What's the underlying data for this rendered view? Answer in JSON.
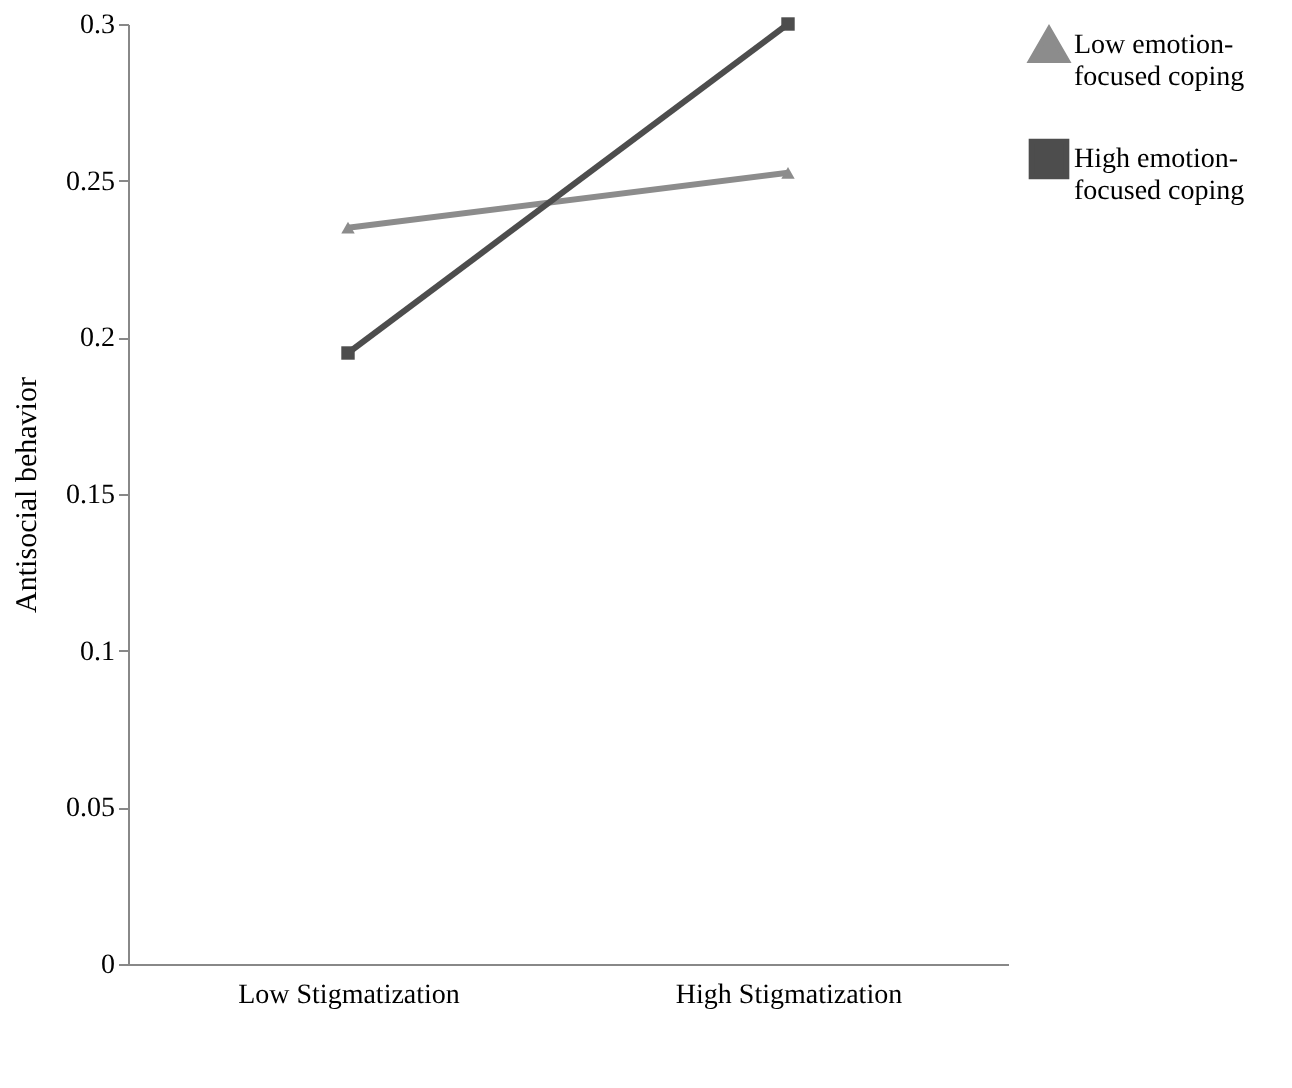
{
  "chart_data": {
    "type": "line",
    "ylabel": "Antisocial behavior",
    "categories": [
      "Low Stigmatization",
      "High Stigmatization"
    ],
    "series": [
      {
        "name": "Low emotion-focused coping",
        "color": "#8c8c8c",
        "values": [
          0.235,
          0.2525
        ],
        "marker": "triangle"
      },
      {
        "name": "High emotion-focused coping",
        "color": "#4d4d4d",
        "values": [
          0.195,
          0.3
        ],
        "marker": "square"
      }
    ],
    "ylim": [
      0,
      0.3
    ],
    "yticks": [
      0,
      0.05,
      0.1,
      0.15,
      0.2,
      0.25,
      0.3
    ],
    "grid": false,
    "legend": "right",
    "line_style": "solid"
  }
}
